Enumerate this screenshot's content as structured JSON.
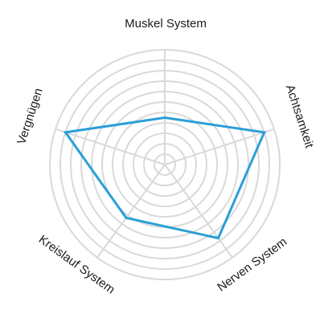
{
  "chart_data": {
    "type": "radar",
    "axes": [
      {
        "label": "Muskel System",
        "value": 4.5
      },
      {
        "label": "Achtsamkeit",
        "value": 10
      },
      {
        "label": "Nerven System",
        "value": 8.7
      },
      {
        "label": "Kreislauf System",
        "value": 6.3
      },
      {
        "label": "Vergnügen",
        "value": 10
      }
    ],
    "range": [
      0,
      11
    ],
    "rings": 11,
    "grid": true,
    "colors": {
      "grid": "#d9d9d9",
      "series": "#2a9fd8"
    }
  }
}
